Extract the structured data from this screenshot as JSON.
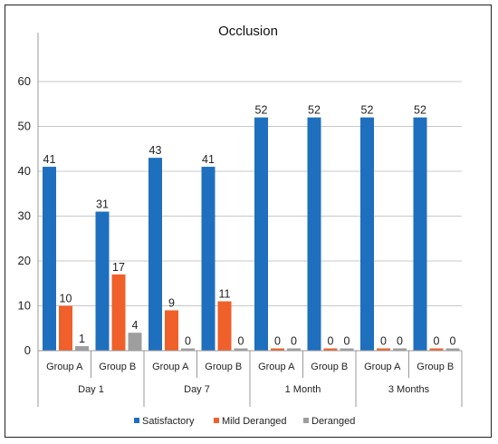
{
  "chart_data": {
    "type": "bar",
    "title": "Occlusion",
    "xlabel": "",
    "ylabel": "",
    "ylim": [
      0,
      70
    ],
    "yticks": [
      0,
      10,
      20,
      30,
      40,
      50,
      60
    ],
    "grid": true,
    "legend_position": "bottom",
    "time_points": [
      "Day 1",
      "Day 7",
      "1 Month",
      "3 Months"
    ],
    "categories": [
      "Group A",
      "Group B",
      "Group A",
      "Group B",
      "Group A",
      "Group B",
      "Group A",
      "Group B"
    ],
    "series": [
      {
        "name": "Satisfactory",
        "color": "#1f6fbf",
        "values": [
          41,
          31,
          43,
          41,
          52,
          52,
          52,
          52
        ]
      },
      {
        "name": "Mild Deranged",
        "color": "#f0602a",
        "values": [
          10,
          17,
          9,
          11,
          0,
          0,
          0,
          0
        ]
      },
      {
        "name": "Deranged",
        "color": "#9e9e9e",
        "values": [
          1,
          4,
          0,
          0,
          0,
          0,
          0,
          0
        ]
      }
    ]
  }
}
